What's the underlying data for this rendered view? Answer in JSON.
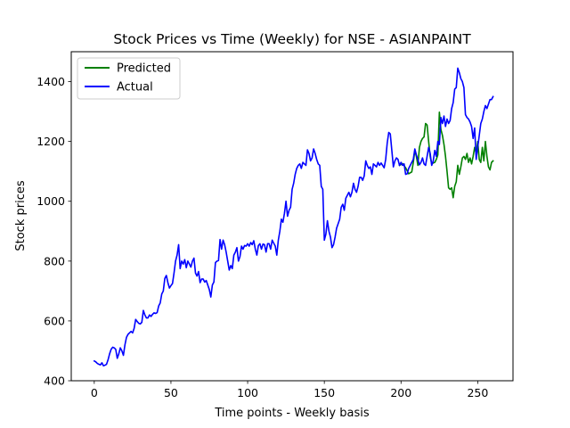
{
  "chart_data": {
    "type": "line",
    "title": "Stock Prices vs Time (Weekly) for NSE - ASIANPAINT",
    "xlabel": "Time points - Weekly basis",
    "ylabel": "Stock prices",
    "xlim": [
      -15,
      273
    ],
    "ylim": [
      400,
      1500
    ],
    "xticks": [
      0,
      50,
      100,
      150,
      200,
      250
    ],
    "yticks": [
      400,
      600,
      800,
      1000,
      1200,
      1400
    ],
    "legend_position": "top-left",
    "grid": false,
    "series": [
      {
        "name": "Predicted",
        "color": "#008000",
        "points": [
          [
            199,
            1120
          ],
          [
            201,
            1126
          ],
          [
            203,
            1112
          ],
          [
            205,
            1092
          ],
          [
            207,
            1098
          ],
          [
            208,
            1130
          ],
          [
            209,
            1170
          ],
          [
            210,
            1150
          ],
          [
            211,
            1120
          ],
          [
            212,
            1180
          ],
          [
            213,
            1200
          ],
          [
            214,
            1210
          ],
          [
            215,
            1215
          ],
          [
            216,
            1260
          ],
          [
            217,
            1255
          ],
          [
            218,
            1200
          ],
          [
            219,
            1150
          ],
          [
            220,
            1125
          ],
          [
            221,
            1128
          ],
          [
            222,
            1130
          ],
          [
            223,
            1140
          ],
          [
            224,
            1155
          ],
          [
            225,
            1298
          ],
          [
            226,
            1240
          ],
          [
            227,
            1220
          ],
          [
            228,
            1190
          ],
          [
            229,
            1150
          ],
          [
            230,
            1100
          ],
          [
            231,
            1045
          ],
          [
            232,
            1040
          ],
          [
            233,
            1045
          ],
          [
            234,
            1012
          ],
          [
            235,
            1050
          ],
          [
            236,
            1065
          ],
          [
            237,
            1120
          ],
          [
            238,
            1090
          ],
          [
            239,
            1115
          ],
          [
            240,
            1145
          ],
          [
            241,
            1150
          ],
          [
            242,
            1140
          ],
          [
            243,
            1160
          ],
          [
            244,
            1130
          ],
          [
            245,
            1145
          ],
          [
            246,
            1125
          ],
          [
            247,
            1150
          ],
          [
            248,
            1180
          ],
          [
            249,
            1160
          ],
          [
            250,
            1200
          ],
          [
            251,
            1140
          ],
          [
            252,
            1130
          ],
          [
            253,
            1180
          ],
          [
            254,
            1135
          ],
          [
            255,
            1200
          ],
          [
            256,
            1150
          ],
          [
            257,
            1115
          ],
          [
            258,
            1105
          ],
          [
            259,
            1130
          ],
          [
            260,
            1135
          ]
        ]
      },
      {
        "name": "Actual",
        "color": "#0000ff",
        "points": [
          [
            0,
            466
          ],
          [
            1,
            463
          ],
          [
            2,
            458
          ],
          [
            3,
            455
          ],
          [
            4,
            453
          ],
          [
            5,
            460
          ],
          [
            6,
            450
          ],
          [
            7,
            452
          ],
          [
            8,
            455
          ],
          [
            9,
            470
          ],
          [
            10,
            490
          ],
          [
            11,
            505
          ],
          [
            12,
            512
          ],
          [
            13,
            510
          ],
          [
            14,
            505
          ],
          [
            15,
            475
          ],
          [
            16,
            490
          ],
          [
            17,
            510
          ],
          [
            18,
            500
          ],
          [
            19,
            485
          ],
          [
            20,
            520
          ],
          [
            21,
            545
          ],
          [
            22,
            555
          ],
          [
            23,
            560
          ],
          [
            24,
            565
          ],
          [
            25,
            560
          ],
          [
            26,
            575
          ],
          [
            27,
            605
          ],
          [
            28,
            598
          ],
          [
            29,
            592
          ],
          [
            30,
            590
          ],
          [
            31,
            595
          ],
          [
            32,
            635
          ],
          [
            33,
            620
          ],
          [
            34,
            610
          ],
          [
            35,
            610
          ],
          [
            36,
            620
          ],
          [
            37,
            615
          ],
          [
            38,
            622
          ],
          [
            39,
            627
          ],
          [
            40,
            625
          ],
          [
            41,
            628
          ],
          [
            42,
            650
          ],
          [
            43,
            660
          ],
          [
            44,
            690
          ],
          [
            45,
            700
          ],
          [
            46,
            742
          ],
          [
            47,
            752
          ],
          [
            48,
            728
          ],
          [
            49,
            710
          ],
          [
            50,
            718
          ],
          [
            51,
            725
          ],
          [
            52,
            760
          ],
          [
            53,
            800
          ],
          [
            54,
            820
          ],
          [
            55,
            855
          ],
          [
            56,
            775
          ],
          [
            57,
            800
          ],
          [
            58,
            790
          ],
          [
            59,
            805
          ],
          [
            60,
            778
          ],
          [
            61,
            800
          ],
          [
            62,
            790
          ],
          [
            63,
            780
          ],
          [
            64,
            800
          ],
          [
            65,
            810
          ],
          [
            66,
            760
          ],
          [
            67,
            750
          ],
          [
            68,
            765
          ],
          [
            69,
            728
          ],
          [
            70,
            740
          ],
          [
            71,
            740
          ],
          [
            72,
            730
          ],
          [
            73,
            735
          ],
          [
            74,
            720
          ],
          [
            75,
            705
          ],
          [
            76,
            680
          ],
          [
            77,
            720
          ],
          [
            78,
            730
          ],
          [
            79,
            795
          ],
          [
            80,
            800
          ],
          [
            81,
            802
          ],
          [
            82,
            872
          ],
          [
            83,
            840
          ],
          [
            84,
            870
          ],
          [
            85,
            855
          ],
          [
            86,
            830
          ],
          [
            87,
            800
          ],
          [
            88,
            770
          ],
          [
            89,
            785
          ],
          [
            90,
            775
          ],
          [
            91,
            820
          ],
          [
            92,
            830
          ],
          [
            93,
            845
          ],
          [
            94,
            800
          ],
          [
            95,
            815
          ],
          [
            96,
            850
          ],
          [
            97,
            840
          ],
          [
            98,
            852
          ],
          [
            99,
            850
          ],
          [
            100,
            858
          ],
          [
            101,
            850
          ],
          [
            102,
            862
          ],
          [
            103,
            855
          ],
          [
            104,
            868
          ],
          [
            105,
            840
          ],
          [
            106,
            820
          ],
          [
            107,
            852
          ],
          [
            108,
            858
          ],
          [
            109,
            840
          ],
          [
            110,
            857
          ],
          [
            111,
            855
          ],
          [
            112,
            830
          ],
          [
            113,
            858
          ],
          [
            114,
            858
          ],
          [
            115,
            840
          ],
          [
            116,
            870
          ],
          [
            117,
            860
          ],
          [
            118,
            850
          ],
          [
            119,
            820
          ],
          [
            120,
            870
          ],
          [
            121,
            900
          ],
          [
            122,
            940
          ],
          [
            123,
            930
          ],
          [
            124,
            960
          ],
          [
            125,
            1000
          ],
          [
            126,
            950
          ],
          [
            127,
            970
          ],
          [
            128,
            980
          ],
          [
            129,
            1040
          ],
          [
            130,
            1060
          ],
          [
            131,
            1090
          ],
          [
            132,
            1110
          ],
          [
            133,
            1120
          ],
          [
            134,
            1125
          ],
          [
            135,
            1110
          ],
          [
            136,
            1130
          ],
          [
            137,
            1125
          ],
          [
            138,
            1120
          ],
          [
            139,
            1172
          ],
          [
            140,
            1160
          ],
          [
            141,
            1135
          ],
          [
            142,
            1145
          ],
          [
            143,
            1175
          ],
          [
            144,
            1160
          ],
          [
            145,
            1140
          ],
          [
            146,
            1125
          ],
          [
            147,
            1120
          ],
          [
            148,
            1050
          ],
          [
            149,
            1040
          ],
          [
            150,
            870
          ],
          [
            151,
            890
          ],
          [
            152,
            935
          ],
          [
            153,
            900
          ],
          [
            154,
            880
          ],
          [
            155,
            845
          ],
          [
            156,
            855
          ],
          [
            157,
            880
          ],
          [
            158,
            910
          ],
          [
            159,
            925
          ],
          [
            160,
            940
          ],
          [
            161,
            980
          ],
          [
            162,
            990
          ],
          [
            163,
            970
          ],
          [
            164,
            1010
          ],
          [
            165,
            1020
          ],
          [
            166,
            1030
          ],
          [
            167,
            1015
          ],
          [
            168,
            1030
          ],
          [
            169,
            1060
          ],
          [
            170,
            1040
          ],
          [
            171,
            1030
          ],
          [
            172,
            1050
          ],
          [
            173,
            1080
          ],
          [
            174,
            1080
          ],
          [
            175,
            1070
          ],
          [
            176,
            1085
          ],
          [
            177,
            1135
          ],
          [
            178,
            1120
          ],
          [
            179,
            1110
          ],
          [
            180,
            1115
          ],
          [
            181,
            1090
          ],
          [
            182,
            1125
          ],
          [
            183,
            1120
          ],
          [
            184,
            1115
          ],
          [
            185,
            1130
          ],
          [
            186,
            1120
          ],
          [
            187,
            1128
          ],
          [
            188,
            1120
          ],
          [
            189,
            1112
          ],
          [
            190,
            1140
          ],
          [
            191,
            1195
          ],
          [
            192,
            1230
          ],
          [
            193,
            1225
          ],
          [
            194,
            1170
          ],
          [
            195,
            1115
          ],
          [
            196,
            1135
          ],
          [
            197,
            1145
          ],
          [
            198,
            1140
          ],
          [
            199,
            1120
          ],
          [
            200,
            1130
          ],
          [
            201,
            1120
          ],
          [
            202,
            1125
          ],
          [
            203,
            1090
          ],
          [
            204,
            1092
          ],
          [
            205,
            1110
          ],
          [
            206,
            1120
          ],
          [
            207,
            1130
          ],
          [
            208,
            1140
          ],
          [
            209,
            1175
          ],
          [
            210,
            1155
          ],
          [
            211,
            1140
          ],
          [
            212,
            1122
          ],
          [
            213,
            1130
          ],
          [
            214,
            1145
          ],
          [
            215,
            1125
          ],
          [
            216,
            1120
          ],
          [
            217,
            1150
          ],
          [
            218,
            1180
          ],
          [
            219,
            1160
          ],
          [
            220,
            1120
          ],
          [
            221,
            1135
          ],
          [
            222,
            1170
          ],
          [
            223,
            1150
          ],
          [
            224,
            1200
          ],
          [
            225,
            1190
          ],
          [
            226,
            1280
          ],
          [
            227,
            1260
          ],
          [
            228,
            1285
          ],
          [
            229,
            1250
          ],
          [
            230,
            1275
          ],
          [
            231,
            1260
          ],
          [
            232,
            1270
          ],
          [
            233,
            1310
          ],
          [
            234,
            1330
          ],
          [
            235,
            1375
          ],
          [
            236,
            1380
          ],
          [
            237,
            1445
          ],
          [
            238,
            1430
          ],
          [
            239,
            1410
          ],
          [
            240,
            1400
          ],
          [
            241,
            1380
          ],
          [
            242,
            1290
          ],
          [
            243,
            1280
          ],
          [
            244,
            1275
          ],
          [
            245,
            1265
          ],
          [
            246,
            1250
          ],
          [
            247,
            1210
          ],
          [
            248,
            1245
          ],
          [
            249,
            1140
          ],
          [
            250,
            1180
          ],
          [
            251,
            1220
          ],
          [
            252,
            1260
          ],
          [
            253,
            1275
          ],
          [
            254,
            1300
          ],
          [
            255,
            1320
          ],
          [
            256,
            1310
          ],
          [
            257,
            1325
          ],
          [
            258,
            1340
          ],
          [
            259,
            1340
          ],
          [
            260,
            1350
          ]
        ]
      }
    ]
  }
}
